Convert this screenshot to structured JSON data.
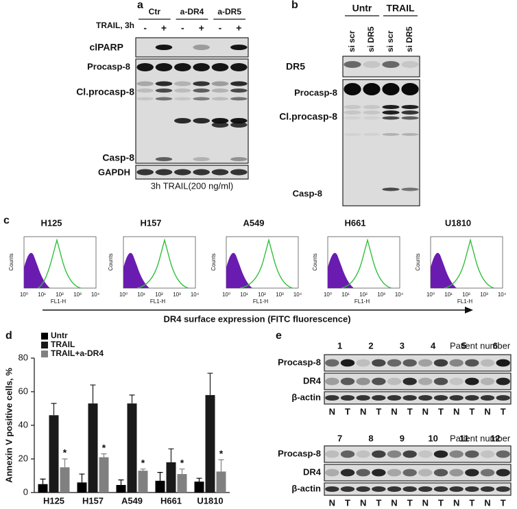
{
  "panels": {
    "a": {
      "label": "a",
      "treatment": "TRAIL, 3h",
      "groups": [
        "Ctr",
        "a-DR4",
        "a-DR5"
      ],
      "lanes": [
        "-",
        "+",
        "-",
        "+",
        "-",
        "+"
      ],
      "rows": [
        "clPARP",
        "Procasp-8",
        "Cl.procasp-8",
        "Casp-8",
        "GAPDH"
      ],
      "caption": "3h TRAIL(200 ng/ml)"
    },
    "b": {
      "label": "b",
      "groups": [
        "Untr",
        "TRAIL"
      ],
      "lanes": [
        "si scr",
        "si DR5",
        "si scr",
        "si DR5"
      ],
      "rows": [
        "DR5",
        "Procasp-8",
        "Cl.procasp-8",
        "Casp-8"
      ]
    },
    "c": {
      "label": "c",
      "plots": [
        "H125",
        "H157",
        "A549",
        "H661",
        "U1810"
      ],
      "y_label": "Counts",
      "x_label": "FL1-H",
      "x_ticks": [
        "10⁰",
        "10¹",
        "10²",
        "10³",
        "10⁴"
      ],
      "caption": "DR4 surface expression (FITC fluorescence)"
    },
    "e": {
      "label": "e",
      "axis_title": "Patient number",
      "blocks": [
        {
          "patients": [
            "1",
            "2",
            "3",
            "4",
            "5",
            "6"
          ]
        },
        {
          "patients": [
            "7",
            "8",
            "9",
            "10",
            "11",
            "12"
          ]
        }
      ],
      "rows": [
        "Procasp-8",
        "DR4",
        "β-actin"
      ],
      "lanes": [
        "N",
        "T"
      ]
    }
  },
  "chart_data": {
    "type": "bar",
    "panel_label": "d",
    "ylabel": "Annexin V positive cells, %",
    "categories": [
      "H125",
      "H157",
      "A549",
      "H661",
      "U1810"
    ],
    "series": [
      {
        "name": "Untr",
        "color": "#000000",
        "values": [
          5,
          6,
          4.5,
          7,
          6.5
        ],
        "errors": [
          3,
          5,
          3,
          5,
          2
        ]
      },
      {
        "name": "TRAIL",
        "color": "#1a1a1a",
        "values": [
          46,
          53,
          53,
          18,
          58
        ],
        "errors": [
          7,
          11,
          5,
          8,
          13
        ]
      },
      {
        "name": "TRAIL+a-DR4",
        "color": "#808080",
        "values": [
          15,
          21,
          13,
          11,
          12.5
        ],
        "errors": [
          5,
          2,
          1,
          3,
          7
        ]
      }
    ],
    "annotations": [
      "*",
      "*",
      "*",
      "*",
      "*"
    ],
    "ylim": [
      0,
      80
    ],
    "yticks": [
      0,
      20,
      40,
      60,
      80
    ],
    "legend": "top-left"
  }
}
